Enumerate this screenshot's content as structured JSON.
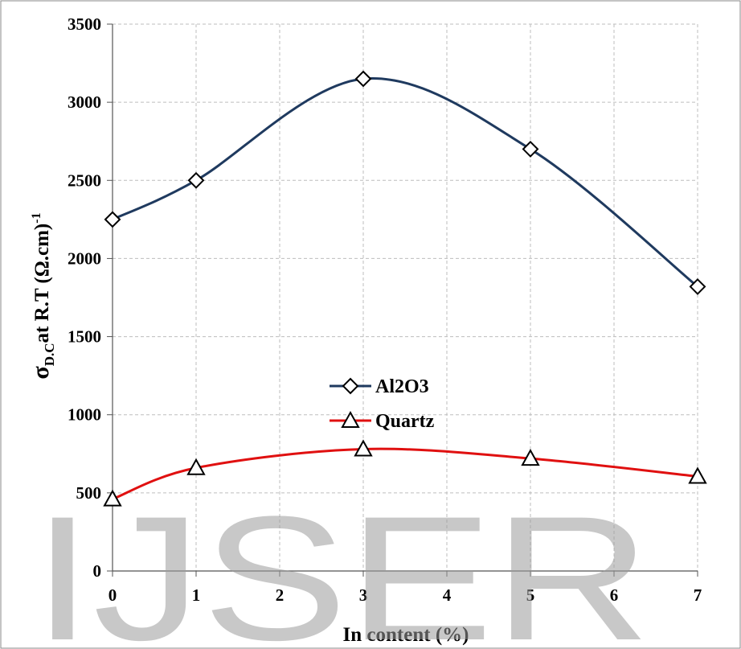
{
  "watermark": "IJSER",
  "chart_data": {
    "type": "line",
    "xlabel": "In content  (%)",
    "ylabel": {
      "symbol": "σ",
      "subscript": "D.C",
      "main": "at R.T (Ω.cm)",
      "superscript": "-1"
    },
    "xlim": [
      0,
      7
    ],
    "ylim": [
      0,
      3500
    ],
    "x_ticks": [
      "0",
      "1",
      "2",
      "3",
      "4",
      "5",
      "6",
      "7"
    ],
    "y_ticks": [
      "0",
      "500",
      "1000",
      "1500",
      "2000",
      "2500",
      "3000",
      "3500"
    ],
    "grid": true,
    "legend_position": "center",
    "series": [
      {
        "name": "Al2O3",
        "color": "#1f3a5f",
        "marker": "diamond",
        "x": [
          0,
          1,
          3,
          5,
          7
        ],
        "y": [
          2250,
          2500,
          3150,
          2700,
          1820
        ]
      },
      {
        "name": "Quartz",
        "color": "#e01010",
        "marker": "triangle",
        "x": [
          0,
          1,
          3,
          5,
          7
        ],
        "y": [
          460,
          660,
          780,
          720,
          605
        ]
      }
    ]
  }
}
